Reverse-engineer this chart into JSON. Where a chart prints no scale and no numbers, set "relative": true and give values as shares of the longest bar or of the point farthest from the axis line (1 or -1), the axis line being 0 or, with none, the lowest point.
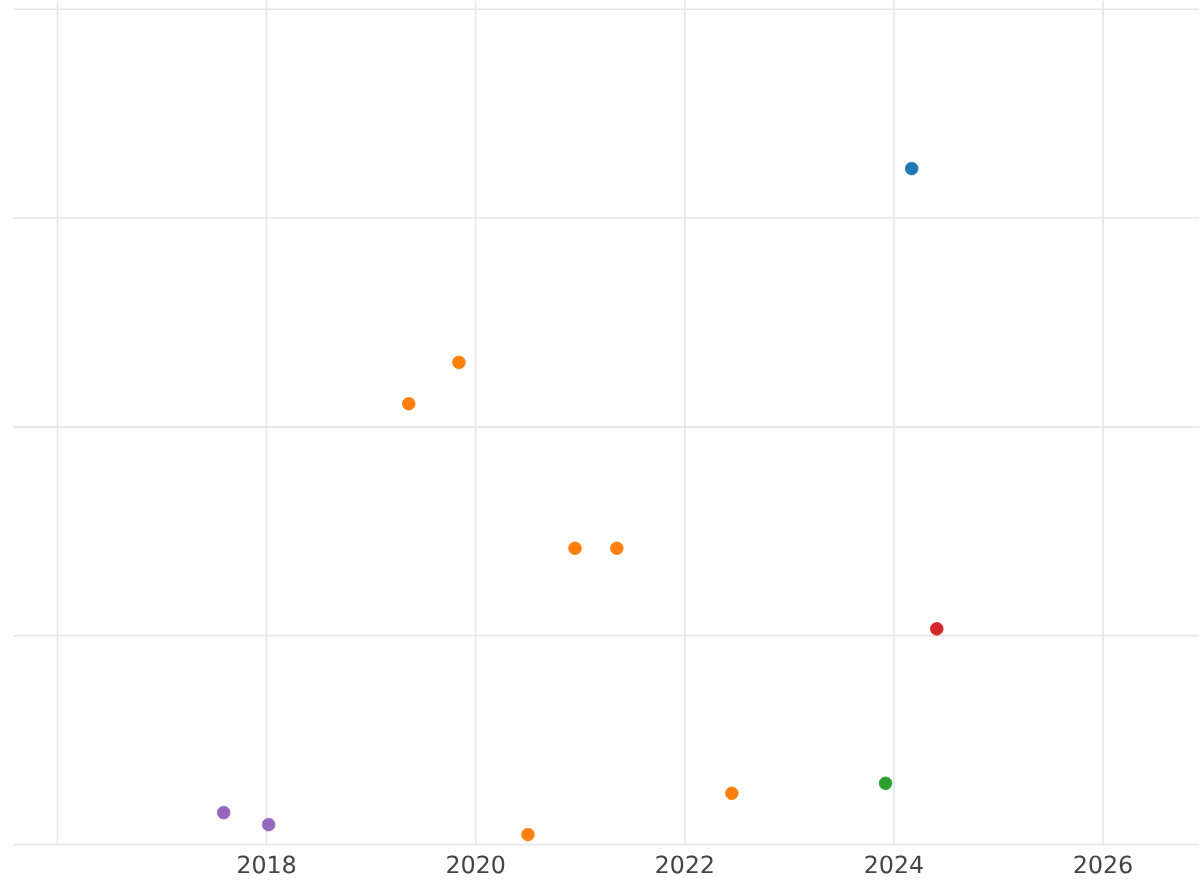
{
  "chart_data": {
    "type": "scatter",
    "relative": true,
    "tick_labels": "x",
    "grid": true,
    "marker": "circle",
    "x": [
      2017.59,
      2018.02,
      2019.36,
      2019.84,
      2020.5,
      2020.95,
      2021.35,
      2022.45,
      2023.92,
      2024.17,
      2024.41
    ],
    "values": [
      0.033,
      0.015,
      0.647,
      0.709,
      0,
      0.43,
      0.43,
      0.062,
      0.077,
      1,
      0.309
    ],
    "colors": [
      "#9467bd",
      "#9467bd",
      "#ff7f0e",
      "#ff7f0e",
      "#ff7f0e",
      "#ff7f0e",
      "#ff7f0e",
      "#ff7f0e",
      "#2ca02c",
      "#1f77b4",
      "#d62728"
    ],
    "xlim": [
      2015.58,
      2026.92
    ],
    "xticks": [
      {
        "value": 2016,
        "label": null
      },
      2018,
      2020,
      2022,
      2024,
      2026
    ]
  }
}
